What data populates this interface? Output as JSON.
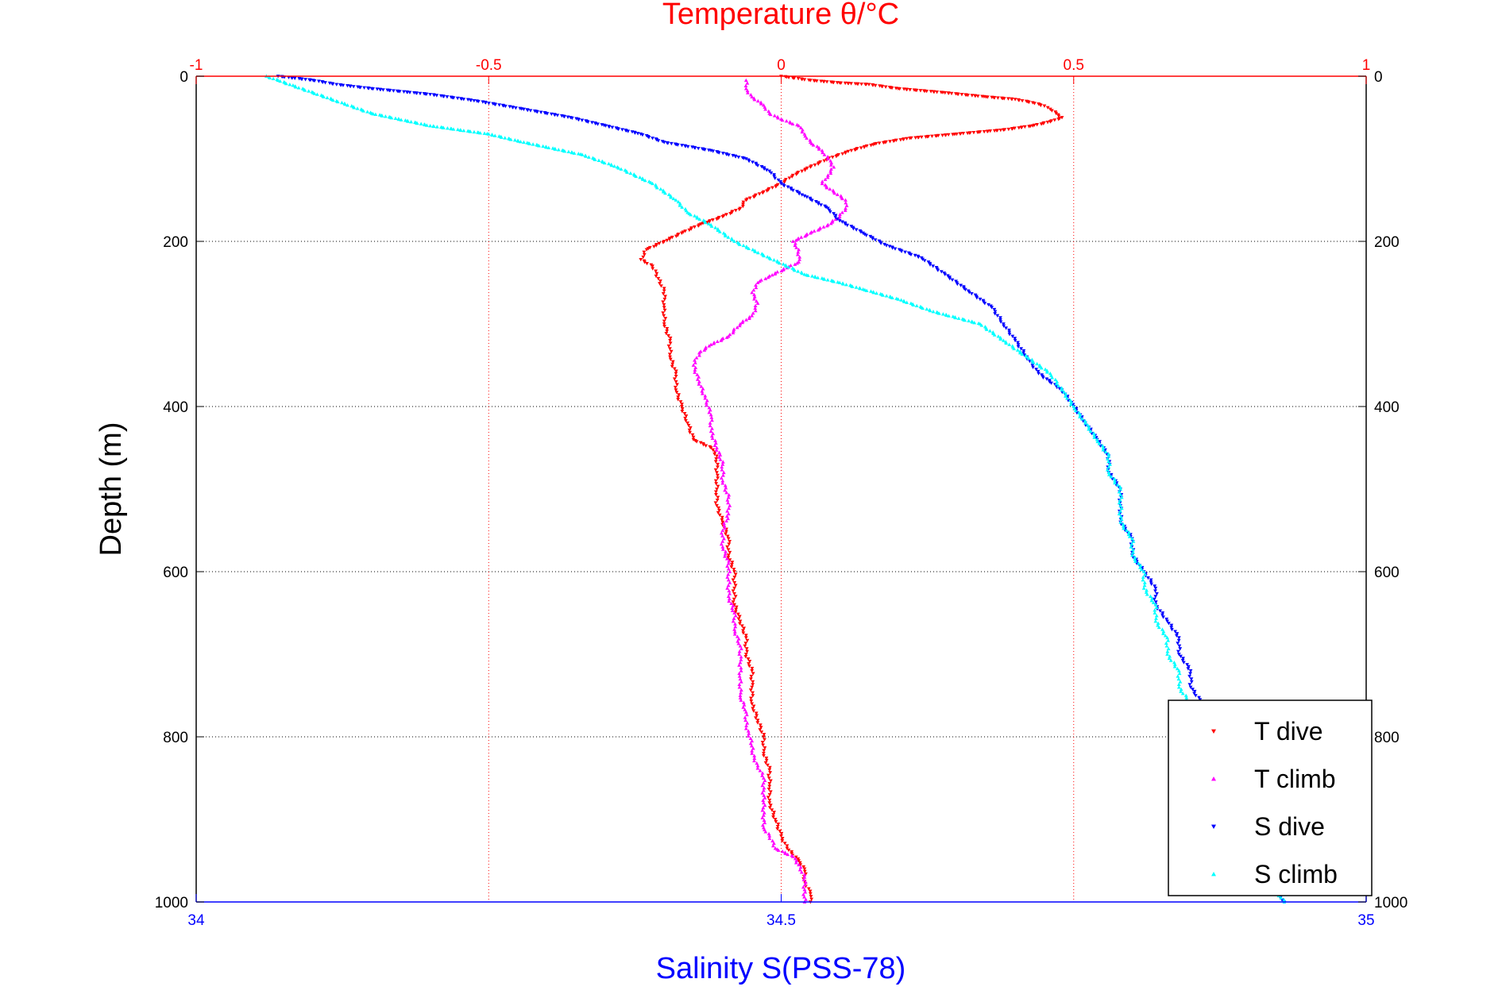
{
  "chart_data": {
    "type": "scatter",
    "title": "Temperature θ/°C",
    "xlabel": "Salinity S(PSS-78)",
    "ylabel": "Depth (m)",
    "ylim": [
      0,
      1000
    ],
    "y_reversed": true,
    "y_ticks": [
      "0",
      "200",
      "400",
      "600",
      "800",
      "1000"
    ],
    "x_bottom": {
      "label": "Salinity S(PSS-78)",
      "lim": [
        34,
        35
      ],
      "ticks": [
        "34",
        "34.5",
        "35"
      ],
      "color": "#0000ff"
    },
    "x_top": {
      "label": "Temperature θ/°C",
      "lim": [
        -1,
        1
      ],
      "ticks": [
        "-1",
        "-0.5",
        "0",
        "0.5",
        "1"
      ],
      "color": "#ff0000"
    },
    "grid": true,
    "legend_position": "bottom-right",
    "series": [
      {
        "name": "T dive",
        "axis": "top",
        "color": "#ff0000",
        "marker": "triangle-down",
        "points": [
          [
            0.0,
            0
          ],
          [
            0.02,
            2
          ],
          [
            0.05,
            5
          ],
          [
            0.1,
            8
          ],
          [
            0.15,
            10
          ],
          [
            0.2,
            15
          ],
          [
            0.28,
            20
          ],
          [
            0.35,
            25
          ],
          [
            0.4,
            28
          ],
          [
            0.43,
            32
          ],
          [
            0.45,
            36
          ],
          [
            0.46,
            40
          ],
          [
            0.47,
            45
          ],
          [
            0.48,
            50
          ],
          [
            0.46,
            55
          ],
          [
            0.43,
            60
          ],
          [
            0.38,
            65
          ],
          [
            0.3,
            70
          ],
          [
            0.22,
            75
          ],
          [
            0.16,
            82
          ],
          [
            0.12,
            90
          ],
          [
            0.08,
            100
          ],
          [
            0.05,
            110
          ],
          [
            0.02,
            120
          ],
          [
            0.0,
            130
          ],
          [
            -0.03,
            140
          ],
          [
            -0.06,
            150
          ],
          [
            -0.07,
            160
          ],
          [
            -0.1,
            170
          ],
          [
            -0.14,
            180
          ],
          [
            -0.17,
            190
          ],
          [
            -0.2,
            200
          ],
          [
            -0.23,
            210
          ],
          [
            -0.24,
            222
          ],
          [
            -0.22,
            230
          ],
          [
            -0.21,
            245
          ],
          [
            -0.2,
            260
          ],
          [
            -0.2,
            280
          ],
          [
            -0.2,
            300
          ],
          [
            -0.19,
            320
          ],
          [
            -0.19,
            340
          ],
          [
            -0.18,
            360
          ],
          [
            -0.18,
            380
          ],
          [
            -0.17,
            400
          ],
          [
            -0.16,
            420
          ],
          [
            -0.15,
            440
          ],
          [
            -0.12,
            450
          ],
          [
            -0.11,
            460
          ],
          [
            -0.11,
            480
          ],
          [
            -0.11,
            500
          ],
          [
            -0.11,
            520
          ],
          [
            -0.1,
            540
          ],
          [
            -0.09,
            560
          ],
          [
            -0.09,
            580
          ],
          [
            -0.08,
            600
          ],
          [
            -0.08,
            620
          ],
          [
            -0.08,
            640
          ],
          [
            -0.07,
            660
          ],
          [
            -0.06,
            680
          ],
          [
            -0.06,
            700
          ],
          [
            -0.05,
            720
          ],
          [
            -0.05,
            740
          ],
          [
            -0.05,
            760
          ],
          [
            -0.04,
            780
          ],
          [
            -0.03,
            800
          ],
          [
            -0.03,
            820
          ],
          [
            -0.02,
            840
          ],
          [
            -0.02,
            860
          ],
          [
            -0.02,
            880
          ],
          [
            -0.01,
            900
          ],
          [
            0.0,
            920
          ],
          [
            0.01,
            935
          ],
          [
            0.03,
            950
          ],
          [
            0.04,
            960
          ],
          [
            0.04,
            975
          ],
          [
            0.05,
            990
          ],
          [
            0.05,
            1000
          ]
        ]
      },
      {
        "name": "T climb",
        "axis": "top",
        "color": "#ff00ff",
        "marker": "triangle-up",
        "points": [
          [
            0.04,
            1000
          ],
          [
            0.04,
            985
          ],
          [
            0.04,
            970
          ],
          [
            0.03,
            955
          ],
          [
            0.02,
            945
          ],
          [
            -0.01,
            935
          ],
          [
            -0.02,
            920
          ],
          [
            -0.03,
            910
          ],
          [
            -0.03,
            895
          ],
          [
            -0.03,
            880
          ],
          [
            -0.03,
            865
          ],
          [
            -0.03,
            850
          ],
          [
            -0.04,
            835
          ],
          [
            -0.05,
            820
          ],
          [
            -0.05,
            805
          ],
          [
            -0.06,
            790
          ],
          [
            -0.06,
            770
          ],
          [
            -0.07,
            750
          ],
          [
            -0.07,
            730
          ],
          [
            -0.07,
            710
          ],
          [
            -0.07,
            690
          ],
          [
            -0.08,
            670
          ],
          [
            -0.08,
            650
          ],
          [
            -0.09,
            630
          ],
          [
            -0.09,
            610
          ],
          [
            -0.09,
            590
          ],
          [
            -0.1,
            570
          ],
          [
            -0.1,
            550
          ],
          [
            -0.09,
            530
          ],
          [
            -0.09,
            510
          ],
          [
            -0.1,
            490
          ],
          [
            -0.1,
            470
          ],
          [
            -0.11,
            450
          ],
          [
            -0.12,
            430
          ],
          [
            -0.12,
            410
          ],
          [
            -0.13,
            390
          ],
          [
            -0.14,
            370
          ],
          [
            -0.15,
            350
          ],
          [
            -0.14,
            335
          ],
          [
            -0.12,
            325
          ],
          [
            -0.09,
            315
          ],
          [
            -0.07,
            300
          ],
          [
            -0.05,
            290
          ],
          [
            -0.04,
            275
          ],
          [
            -0.05,
            262
          ],
          [
            -0.04,
            250
          ],
          [
            -0.02,
            242
          ],
          [
            0.01,
            232
          ],
          [
            0.03,
            225
          ],
          [
            0.03,
            210
          ],
          [
            0.02,
            200
          ],
          [
            0.05,
            190
          ],
          [
            0.08,
            180
          ],
          [
            0.1,
            170
          ],
          [
            0.11,
            160
          ],
          [
            0.11,
            150
          ],
          [
            0.09,
            140
          ],
          [
            0.07,
            130
          ],
          [
            0.08,
            120
          ],
          [
            0.09,
            110
          ],
          [
            0.08,
            100
          ],
          [
            0.07,
            90
          ],
          [
            0.05,
            80
          ],
          [
            0.04,
            70
          ],
          [
            0.03,
            60
          ],
          [
            0.0,
            52
          ],
          [
            -0.02,
            45
          ],
          [
            -0.03,
            35
          ],
          [
            -0.05,
            25
          ],
          [
            -0.06,
            15
          ],
          [
            -0.06,
            5
          ]
        ]
      },
      {
        "name": "S dive",
        "axis": "bottom",
        "color": "#0000ff",
        "marker": "triangle-down",
        "points": [
          [
            34.07,
            0
          ],
          [
            34.1,
            5
          ],
          [
            34.12,
            10
          ],
          [
            34.15,
            15
          ],
          [
            34.2,
            22
          ],
          [
            34.24,
            30
          ],
          [
            34.28,
            40
          ],
          [
            34.32,
            50
          ],
          [
            34.35,
            60
          ],
          [
            34.38,
            70
          ],
          [
            34.4,
            80
          ],
          [
            34.44,
            90
          ],
          [
            34.47,
            100
          ],
          [
            34.49,
            115
          ],
          [
            34.5,
            130
          ],
          [
            34.52,
            145
          ],
          [
            34.54,
            160
          ],
          [
            34.55,
            175
          ],
          [
            34.57,
            190
          ],
          [
            34.59,
            205
          ],
          [
            34.62,
            220
          ],
          [
            34.64,
            240
          ],
          [
            34.66,
            260
          ],
          [
            34.68,
            280
          ],
          [
            34.69,
            300
          ],
          [
            34.7,
            320
          ],
          [
            34.71,
            340
          ],
          [
            34.72,
            360
          ],
          [
            34.74,
            380
          ],
          [
            34.75,
            400
          ],
          [
            34.76,
            420
          ],
          [
            34.77,
            440
          ],
          [
            34.78,
            460
          ],
          [
            34.78,
            480
          ],
          [
            34.79,
            500
          ],
          [
            34.79,
            520
          ],
          [
            34.79,
            540
          ],
          [
            34.8,
            560
          ],
          [
            34.8,
            580
          ],
          [
            34.81,
            600
          ],
          [
            34.82,
            620
          ],
          [
            34.82,
            640
          ],
          [
            34.83,
            660
          ],
          [
            34.84,
            680
          ],
          [
            34.84,
            700
          ],
          [
            34.85,
            720
          ],
          [
            34.85,
            740
          ],
          [
            34.86,
            760
          ],
          [
            34.86,
            780
          ],
          [
            34.87,
            800
          ],
          [
            34.87,
            820
          ],
          [
            34.88,
            840
          ],
          [
            34.88,
            860
          ],
          [
            34.89,
            880
          ],
          [
            34.89,
            900
          ],
          [
            34.9,
            920
          ],
          [
            34.91,
            940
          ],
          [
            34.92,
            960
          ],
          [
            34.92,
            980
          ],
          [
            34.93,
            1000
          ]
        ]
      },
      {
        "name": "S climb",
        "axis": "bottom",
        "color": "#00ffff",
        "marker": "triangle-up",
        "points": [
          [
            34.93,
            1000
          ],
          [
            34.92,
            980
          ],
          [
            34.91,
            960
          ],
          [
            34.9,
            940
          ],
          [
            34.89,
            920
          ],
          [
            34.88,
            900
          ],
          [
            34.88,
            880
          ],
          [
            34.87,
            860
          ],
          [
            34.87,
            840
          ],
          [
            34.86,
            820
          ],
          [
            34.86,
            800
          ],
          [
            34.85,
            780
          ],
          [
            34.85,
            760
          ],
          [
            34.84,
            740
          ],
          [
            34.84,
            720
          ],
          [
            34.83,
            700
          ],
          [
            34.83,
            680
          ],
          [
            34.82,
            660
          ],
          [
            34.82,
            640
          ],
          [
            34.81,
            620
          ],
          [
            34.81,
            600
          ],
          [
            34.8,
            580
          ],
          [
            34.8,
            560
          ],
          [
            34.79,
            540
          ],
          [
            34.79,
            520
          ],
          [
            34.79,
            500
          ],
          [
            34.78,
            480
          ],
          [
            34.78,
            460
          ],
          [
            34.77,
            440
          ],
          [
            34.76,
            420
          ],
          [
            34.75,
            400
          ],
          [
            34.74,
            380
          ],
          [
            34.73,
            360
          ],
          [
            34.71,
            340
          ],
          [
            34.69,
            320
          ],
          [
            34.67,
            300
          ],
          [
            34.63,
            285
          ],
          [
            34.6,
            270
          ],
          [
            34.57,
            258
          ],
          [
            34.55,
            250
          ],
          [
            34.52,
            240
          ],
          [
            34.49,
            220
          ],
          [
            34.46,
            200
          ],
          [
            34.44,
            180
          ],
          [
            34.42,
            165
          ],
          [
            34.41,
            150
          ],
          [
            34.39,
            130
          ],
          [
            34.36,
            110
          ],
          [
            34.33,
            95
          ],
          [
            34.28,
            80
          ],
          [
            34.25,
            70
          ],
          [
            34.2,
            60
          ],
          [
            34.15,
            45
          ],
          [
            34.12,
            30
          ],
          [
            34.1,
            20
          ],
          [
            34.08,
            10
          ],
          [
            34.07,
            5
          ],
          [
            34.06,
            0
          ]
        ]
      }
    ]
  }
}
